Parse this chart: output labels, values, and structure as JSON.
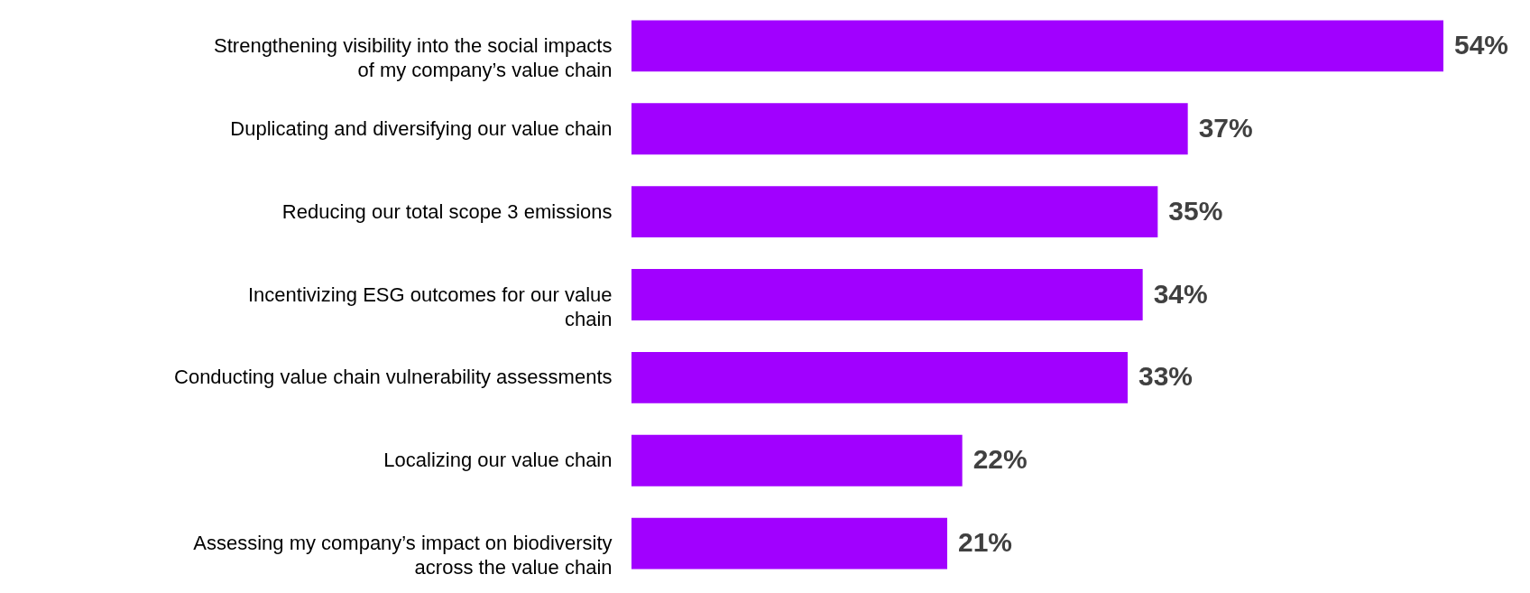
{
  "chart_data": {
    "type": "bar",
    "orientation": "horizontal",
    "categories": [
      "Strengthening visibility into the social impacts\nof my company’s value chain",
      "Duplicating and diversifying our value chain",
      "Reducing our total scope 3 emissions",
      "Incentivizing ESG outcomes for our value\nchain",
      "Conducting value chain vulnerability assessments",
      "Localizing our value chain",
      "Assessing my company’s impact on biodiversity\nacross the value chain"
    ],
    "values": [
      54,
      37,
      35,
      34,
      33,
      22,
      21
    ],
    "value_labels": [
      "54%",
      "37%",
      "35%",
      "34%",
      "33%",
      "22%",
      "21%"
    ],
    "color": "#a100ff"
  }
}
